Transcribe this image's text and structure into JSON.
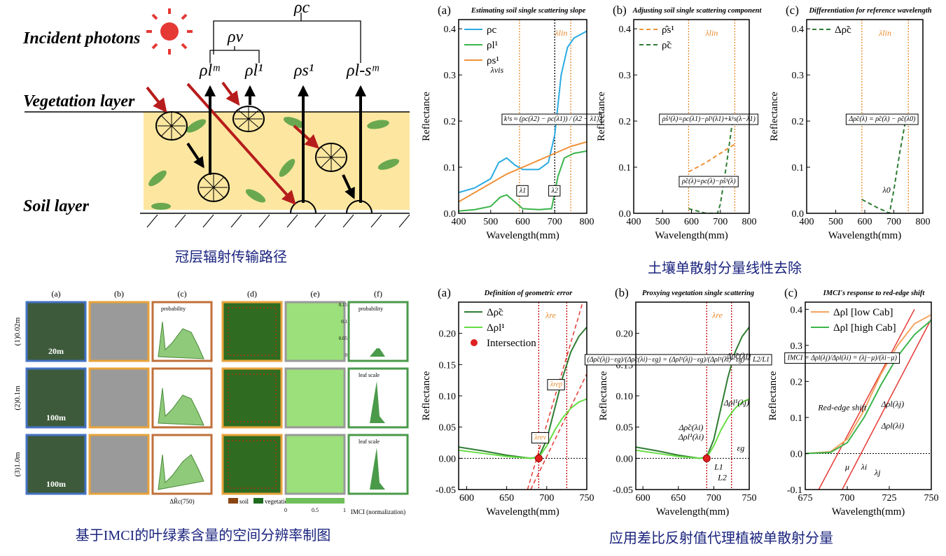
{
  "diagram": {
    "labels": {
      "rho_c": "ρc",
      "rho_v": "ρv",
      "rho_lm": "ρlᵐ",
      "rho_l1": "ρl¹",
      "rho_s1": "ρs¹",
      "rho_lsm": "ρl-sᵐ",
      "incident": "Incident photons",
      "vegetation": "Vegetation layer",
      "soil": "Soil layer"
    }
  },
  "figure_grid": {
    "columns": [
      "(a)",
      "(b)",
      "(c)",
      "(d)",
      "(e)",
      "(f)"
    ],
    "rows": [
      "(1)0.02m",
      "(2)0.1m",
      "(3)1.0m"
    ],
    "scales": [
      "20m",
      "100m",
      "100m"
    ],
    "hist_legend": "probability",
    "leaf_scale": "leaf scale",
    "x_labels": [
      "ΔR̃c(750)",
      "IMCI (normalization)"
    ],
    "legend": [
      "soil",
      "vegetation"
    ],
    "colorbar_ticks": [
      "0",
      "0.5",
      "1"
    ],
    "hist_ticks": [
      "0.15",
      "0.1",
      "0.05",
      "0"
    ]
  },
  "captions": [
    "冠层辐射传输路径",
    "土壤单散射分量线性去除",
    "基于IMCI的叶绿素含量的空间分辨率制图",
    "应用差比反射值代理植被单散射分量"
  ],
  "chart_data": [
    {
      "type": "line",
      "panel": "(a)",
      "title": "Estimating soil single scattering slope",
      "xlabel": "Wavelength(mm)",
      "ylabel": "Reflectance",
      "xlim": [
        400,
        800
      ],
      "ylim": [
        0,
        0.42
      ],
      "xticks": [
        400,
        500,
        600,
        700,
        800
      ],
      "yticks": [
        {
          "value": 0,
          "label": "0.0"
        },
        {
          "value": 0.1,
          "label": "0.1"
        },
        {
          "value": 0.2,
          "label": "0.2"
        },
        {
          "value": 0.3,
          "label": "0.3"
        },
        {
          "value": 0.4,
          "label": "0.4"
        }
      ],
      "ref_lines": [
        {
          "x": 590,
          "color": "#e8892a"
        },
        {
          "x": 700,
          "color": "#000000"
        },
        {
          "x": 750,
          "color": "#e8892a"
        }
      ],
      "series": [
        {
          "name": "ρc",
          "color": "#29abe2",
          "x": [
            400,
            450,
            500,
            525,
            550,
            575,
            600,
            650,
            680,
            700,
            720,
            740,
            760,
            800
          ],
          "values": [
            0.045,
            0.055,
            0.075,
            0.11,
            0.12,
            0.105,
            0.095,
            0.095,
            0.11,
            0.17,
            0.3,
            0.36,
            0.38,
            0.395
          ]
        },
        {
          "name": "ρl¹",
          "color": "#3cb44b",
          "x": [
            400,
            450,
            500,
            530,
            550,
            575,
            600,
            650,
            690,
            710,
            730,
            760,
            800
          ],
          "values": [
            0.005,
            0.008,
            0.015,
            0.035,
            0.04,
            0.025,
            0.01,
            0.008,
            0.01,
            0.08,
            0.12,
            0.13,
            0.135
          ]
        },
        {
          "name": "ρs¹",
          "color": "#f0923a",
          "x": [
            400,
            450,
            500,
            550,
            600,
            650,
            700,
            750,
            800
          ],
          "values": [
            0.025,
            0.045,
            0.065,
            0.085,
            0.1,
            0.115,
            0.13,
            0.145,
            0.155
          ]
        }
      ],
      "annotations": [
        "λvis",
        "λlin",
        "k¹s ≈ (ρc(λ2) − ρc(λ1)) / (λ2 − λ1)",
        "λ1",
        "λ2"
      ]
    },
    {
      "type": "line",
      "panel": "(b)",
      "title": "Adjusting soil single scattering component",
      "xlabel": "Wavelength(mm)",
      "ylabel": "Reflectance",
      "xlim": [
        400,
        800
      ],
      "ylim": [
        0,
        0.42
      ],
      "xticks": [
        400,
        500,
        600,
        700,
        800
      ],
      "yticks": [
        {
          "value": 0,
          "label": "0.0"
        },
        {
          "value": 0.1,
          "label": "0.1"
        },
        {
          "value": 0.2,
          "label": "0.2"
        },
        {
          "value": 0.3,
          "label": "0.3"
        },
        {
          "value": 0.4,
          "label": "0.4"
        }
      ],
      "ref_lines": [
        {
          "x": 590,
          "color": "#e8892a"
        },
        {
          "x": 750,
          "color": "#e8892a"
        }
      ],
      "series": [
        {
          "name": "ρ̂s¹",
          "color": "#f0923a",
          "dash": true,
          "x": [
            590,
            650,
            700,
            750
          ],
          "values": [
            0.09,
            0.11,
            0.13,
            0.15
          ]
        },
        {
          "name": "ρ̃c",
          "color": "#2e7d32",
          "dash": true,
          "x": [
            590,
            620,
            650,
            690,
            700,
            720,
            740,
            750
          ],
          "values": [
            0.01,
            0.005,
            0,
            0,
            0.02,
            0.1,
            0.19,
            0.21
          ]
        }
      ],
      "annotations": [
        "λlin",
        "ρ̂s¹(λ)=ρc(λ1)−ρl¹(λ1)+k¹s(λ−λ1)",
        "ρ̃c(λ)=ρc(λ)−ρ̂s¹(λ)"
      ]
    },
    {
      "type": "line",
      "panel": "(c)",
      "title": "Differentiation for reference wavelength",
      "xlabel": "Wavelength(mm)",
      "ylabel": "Reflectance",
      "xlim": [
        400,
        800
      ],
      "ylim": [
        0,
        0.42
      ],
      "xticks": [
        400,
        500,
        600,
        700,
        800
      ],
      "yticks": [
        {
          "value": 0,
          "label": "0.0"
        },
        {
          "value": 0.1,
          "label": "0.1"
        },
        {
          "value": 0.2,
          "label": "0.2"
        },
        {
          "value": 0.3,
          "label": "0.3"
        },
        {
          "value": 0.4,
          "label": "0.4"
        }
      ],
      "ref_lines": [
        {
          "x": 590,
          "color": "#e8892a"
        },
        {
          "x": 750,
          "color": "#e8892a"
        }
      ],
      "series": [
        {
          "name": "Δρ̃c",
          "color": "#2e7d32",
          "dash": true,
          "x": [
            590,
            620,
            650,
            670,
            685,
            700,
            720,
            740,
            750
          ],
          "values": [
            0.03,
            0.02,
            0.01,
            0.005,
            0,
            0.05,
            0.13,
            0.2,
            0.21
          ]
        }
      ],
      "annotations": [
        "λlin",
        "Δρ̃c(λ) = ρ̃c(λ) − ρ̃c(λ0)",
        "λ0"
      ]
    },
    {
      "type": "line",
      "panel": "(a)",
      "title": "Definition of geometric error",
      "xlabel": "Wavelength(mm)",
      "ylabel": "Reflectance",
      "xlim": [
        590,
        750
      ],
      "ylim": [
        -0.05,
        0.25
      ],
      "xticks": [
        600,
        650,
        700,
        750
      ],
      "yticks": [
        {
          "value": -0.05,
          "label": "-0.05"
        },
        {
          "value": 0,
          "label": "0.00"
        },
        {
          "value": 0.05,
          "label": "0.05"
        },
        {
          "value": 0.1,
          "label": "0.10"
        },
        {
          "value": 0.15,
          "label": "0.15"
        },
        {
          "value": 0.2,
          "label": "0.20"
        }
      ],
      "ref_lines": [
        {
          "x": 690,
          "color": "#c00000"
        },
        {
          "x": 725,
          "color": "#c00000"
        }
      ],
      "hlines": [
        0
      ],
      "guide_lines": [
        {
          "color": "#e53935",
          "x": [
            676,
            745
          ],
          "values": [
            -0.05,
            0.25
          ]
        },
        {
          "color": "#e53935",
          "x": [
            680,
            750
          ],
          "values": [
            -0.05,
            0.135
          ]
        }
      ],
      "series": [
        {
          "name": "Δρ̃c",
          "color": "#2e7d32",
          "x": [
            590,
            620,
            650,
            680,
            690,
            700,
            710,
            720,
            730,
            740,
            750
          ],
          "values": [
            0.018,
            0.012,
            0.005,
            0,
            0.002,
            0.03,
            0.08,
            0.13,
            0.17,
            0.195,
            0.21
          ]
        },
        {
          "name": "Δρl¹",
          "color": "#66dd44",
          "x": [
            590,
            620,
            650,
            680,
            690,
            700,
            710,
            720,
            730,
            740,
            750
          ],
          "values": [
            0.013,
            0.008,
            0.003,
            0,
            0.001,
            0.02,
            0.045,
            0.065,
            0.08,
            0.09,
            0.095
          ]
        },
        {
          "name": "Intersection",
          "color": "#e02020",
          "marker": true,
          "x": [
            690
          ],
          "values": [
            0
          ]
        }
      ],
      "annotations": [
        "λre",
        "λrep",
        "λrev"
      ]
    },
    {
      "type": "line",
      "panel": "(b)",
      "title": "Proxying vegetation single scattering",
      "xlabel": "Wavelength(mm)",
      "ylabel": "Reflectance",
      "xlim": [
        590,
        750
      ],
      "ylim": [
        -0.05,
        0.25
      ],
      "xticks": [
        600,
        650,
        700,
        750
      ],
      "yticks": [
        {
          "value": -0.05,
          "label": "-0.05"
        },
        {
          "value": 0,
          "label": "0.00"
        },
        {
          "value": 0.05,
          "label": "0.05"
        },
        {
          "value": 0.1,
          "label": "0.10"
        },
        {
          "value": 0.15,
          "label": "0.15"
        },
        {
          "value": 0.2,
          "label": "0.20"
        }
      ],
      "ref_lines": [
        {
          "x": 690,
          "color": "#c00000"
        },
        {
          "x": 725,
          "color": "#c00000"
        }
      ],
      "hlines": [
        0
      ],
      "series": [
        {
          "color": "#2e7d32",
          "x": [
            590,
            620,
            650,
            680,
            690,
            700,
            710,
            720,
            730,
            740,
            750
          ],
          "values": [
            0.018,
            0.012,
            0.005,
            0,
            0.002,
            0.03,
            0.08,
            0.13,
            0.17,
            0.195,
            0.21
          ]
        },
        {
          "color": "#66dd44",
          "x": [
            590,
            620,
            650,
            680,
            690,
            700,
            710,
            720,
            730,
            740,
            750
          ],
          "values": [
            0.013,
            0.008,
            0.003,
            0,
            0.001,
            0.02,
            0.045,
            0.065,
            0.08,
            0.09,
            0.095
          ]
        },
        {
          "color": "#e02020",
          "marker": true,
          "x": [
            690
          ],
          "values": [
            0
          ]
        }
      ],
      "annotations": [
        "λre",
        "(Δρ̃c(λj)−εg)/(Δρ̃c(λi)−εg) = (Δρl¹(λj)−εg)/(Δρl¹(λi)−εg) = L2/L1",
        "Δρ̃c(λj)",
        "Δρl¹(λj)",
        "Δρ̃c(λi)",
        "Δρl¹(λi)",
        "εg",
        "L1",
        "L2"
      ]
    },
    {
      "type": "line",
      "panel": "(c)",
      "title": "IMCI's response to red-edge shift",
      "xlabel": "Wavelength(mm)",
      "ylabel": "Reflectance",
      "xlim": [
        675,
        750
      ],
      "ylim": [
        -0.1,
        0.42
      ],
      "xticks": [
        675,
        700,
        725,
        750
      ],
      "yticks": [
        {
          "value": -0.1,
          "label": "-0.1"
        },
        {
          "value": 0,
          "label": "0.0"
        },
        {
          "value": 0.1,
          "label": "0.1"
        },
        {
          "value": 0.2,
          "label": "0.2"
        },
        {
          "value": 0.3,
          "label": "0.3"
        },
        {
          "value": 0.4,
          "label": "0.4"
        }
      ],
      "hlines": [
        0
      ],
      "guide_lines": [
        {
          "color": "#e53935",
          "x": [
            683,
            740
          ],
          "values": [
            -0.1,
            0.4
          ]
        },
        {
          "color": "#e53935",
          "x": [
            697,
            753
          ],
          "values": [
            -0.1,
            0.4
          ]
        }
      ],
      "series": [
        {
          "name": "Δρl [low Cab]",
          "color": "#f4a460",
          "x": [
            675,
            690,
            700,
            710,
            720,
            730,
            740,
            750
          ],
          "values": [
            0,
            0.005,
            0.04,
            0.12,
            0.22,
            0.3,
            0.36,
            0.385
          ]
        },
        {
          "name": "Δρl [high Cab]",
          "color": "#3cb44b",
          "x": [
            675,
            690,
            700,
            710,
            720,
            730,
            740,
            750
          ],
          "values": [
            0,
            0.003,
            0.03,
            0.1,
            0.19,
            0.27,
            0.33,
            0.37
          ]
        }
      ],
      "annotations": [
        "IMCI = Δρl(λj)/Δρl(λi) = (λj−μ)/(λi−μ)",
        "Red-edge shift",
        "Δρl(λj)",
        "Δρl(λi)",
        "μ",
        "λi",
        "λj"
      ]
    }
  ]
}
